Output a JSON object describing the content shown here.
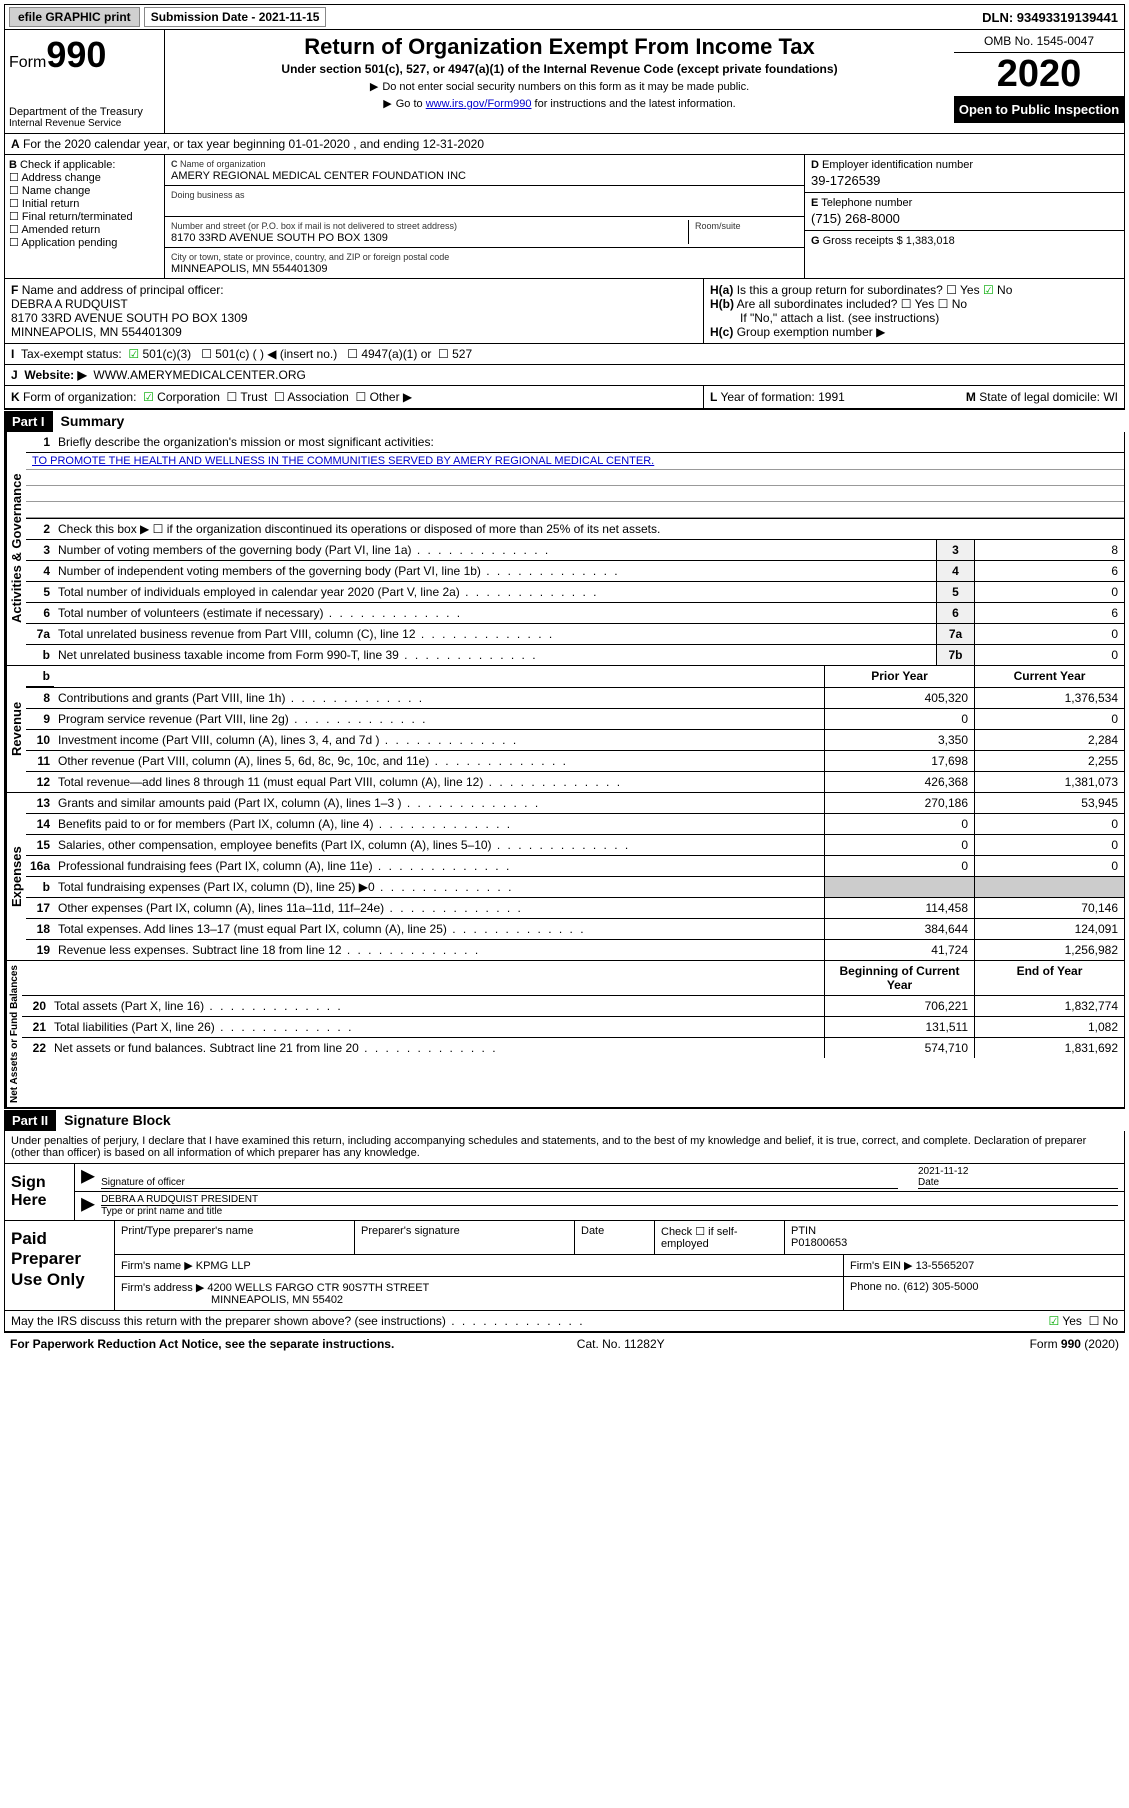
{
  "topbar": {
    "efile": "efile GRAPHIC print",
    "sub_label": "Submission Date - 2021-11-15",
    "dln": "DLN: 93493319139441"
  },
  "hdr": {
    "form_word": "Form",
    "form_no": "990",
    "dept": "Department of the Treasury",
    "irs": "Internal Revenue Service",
    "title": "Return of Organization Exempt From Income Tax",
    "subtitle": "Under section 501(c), 527, or 4947(a)(1) of the Internal Revenue Code (except private foundations)",
    "ssn_note": "Do not enter social security numbers on this form as it may be made public.",
    "goto": "Go to www.irs.gov/Form990 for instructions and the latest information.",
    "link": "www.irs.gov/Form990",
    "omb": "OMB No. 1545-0047",
    "year": "2020",
    "open": "Open to Public Inspection"
  },
  "A": "For the 2020 calendar year, or tax year beginning 01-01-2020    , and ending 12-31-2020",
  "B": {
    "label": "Check if applicable:",
    "items": [
      "Address change",
      "Name change",
      "Initial return",
      "Final return/terminated",
      "Amended return",
      "Application pending"
    ]
  },
  "C": {
    "name_lab": "Name of organization",
    "name": "AMERY REGIONAL MEDICAL CENTER FOUNDATION INC",
    "dba_lab": "Doing business as",
    "dba": "",
    "addr_lab": "Number and street (or P.O. box if mail is not delivered to street address)",
    "room_lab": "Room/suite",
    "addr": "8170 33RD AVENUE SOUTH PO BOX 1309",
    "city_lab": "City or town, state or province, country, and ZIP or foreign postal code",
    "city": "MINNEAPOLIS, MN  554401309"
  },
  "D": {
    "lab": "Employer identification number",
    "val": "39-1726539"
  },
  "E": {
    "lab": "Telephone number",
    "val": "(715) 268-8000"
  },
  "G": {
    "lab": "Gross receipts $",
    "val": "1,383,018"
  },
  "F": {
    "lab": "Name and address of principal officer:",
    "name": "DEBRA A RUDQUIST",
    "addr": "8170 33RD AVENUE SOUTH PO BOX 1309",
    "city": "MINNEAPOLIS, MN  554401309"
  },
  "H": {
    "a": "Is this a group return for subordinates?",
    "b": "Are all subordinates included?",
    "b_note": "If \"No,\" attach a list. (see instructions)",
    "c": "Group exemption number ▶"
  },
  "I": {
    "lab": "Tax-exempt status:",
    "opts": [
      "501(c)(3)",
      "501(c) (  ) ◀ (insert no.)",
      "4947(a)(1) or",
      "527"
    ]
  },
  "J": {
    "lab": "Website: ▶",
    "val": "WWW.AMERYMEDICALCENTER.ORG"
  },
  "K": {
    "lab": "Form of organization:",
    "opts": [
      "Corporation",
      "Trust",
      "Association",
      "Other ▶"
    ]
  },
  "L": {
    "lab": "Year of formation:",
    "val": "1991"
  },
  "M": {
    "lab": "State of legal domicile:",
    "val": "WI"
  },
  "part1": {
    "hdr": "Part I",
    "title": "Summary"
  },
  "gov": {
    "tab": "Activities & Governance",
    "l1_lab": "Briefly describe the organization's mission or most significant activities:",
    "l1_val": "TO PROMOTE THE HEALTH AND WELLNESS IN THE COMMUNITIES SERVED BY AMERY REGIONAL MEDICAL CENTER.",
    "l2": "Check this box ▶ ☐  if the organization discontinued its operations or disposed of more than 25% of its net assets.",
    "rows": [
      {
        "n": "3",
        "t": "Number of voting members of the governing body (Part VI, line 1a)",
        "b": "3",
        "v": "8"
      },
      {
        "n": "4",
        "t": "Number of independent voting members of the governing body (Part VI, line 1b)",
        "b": "4",
        "v": "6"
      },
      {
        "n": "5",
        "t": "Total number of individuals employed in calendar year 2020 (Part V, line 2a)",
        "b": "5",
        "v": "0"
      },
      {
        "n": "6",
        "t": "Total number of volunteers (estimate if necessary)",
        "b": "6",
        "v": "6"
      },
      {
        "n": "7a",
        "t": "Total unrelated business revenue from Part VIII, column (C), line 12",
        "b": "7a",
        "v": "0"
      },
      {
        "n": "b",
        "t": "Net unrelated business taxable income from Form 990-T, line 39",
        "b": "7b",
        "v": "0"
      }
    ]
  },
  "rev": {
    "tab": "Revenue",
    "hdr_prior": "Prior Year",
    "hdr_curr": "Current Year",
    "rows": [
      {
        "n": "8",
        "t": "Contributions and grants (Part VIII, line 1h)",
        "p": "405,320",
        "c": "1,376,534"
      },
      {
        "n": "9",
        "t": "Program service revenue (Part VIII, line 2g)",
        "p": "0",
        "c": "0"
      },
      {
        "n": "10",
        "t": "Investment income (Part VIII, column (A), lines 3, 4, and 7d )",
        "p": "3,350",
        "c": "2,284"
      },
      {
        "n": "11",
        "t": "Other revenue (Part VIII, column (A), lines 5, 6d, 8c, 9c, 10c, and 11e)",
        "p": "17,698",
        "c": "2,255"
      },
      {
        "n": "12",
        "t": "Total revenue—add lines 8 through 11 (must equal Part VIII, column (A), line 12)",
        "p": "426,368",
        "c": "1,381,073"
      }
    ]
  },
  "exp": {
    "tab": "Expenses",
    "rows": [
      {
        "n": "13",
        "t": "Grants and similar amounts paid (Part IX, column (A), lines 1–3 )",
        "p": "270,186",
        "c": "53,945"
      },
      {
        "n": "14",
        "t": "Benefits paid to or for members (Part IX, column (A), line 4)",
        "p": "0",
        "c": "0"
      },
      {
        "n": "15",
        "t": "Salaries, other compensation, employee benefits (Part IX, column (A), lines 5–10)",
        "p": "0",
        "c": "0"
      },
      {
        "n": "16a",
        "t": "Professional fundraising fees (Part IX, column (A), line 11e)",
        "p": "0",
        "c": "0"
      },
      {
        "n": "b",
        "t": "Total fundraising expenses (Part IX, column (D), line 25) ▶0",
        "p": "",
        "c": ""
      },
      {
        "n": "17",
        "t": "Other expenses (Part IX, column (A), lines 11a–11d, 11f–24e)",
        "p": "114,458",
        "c": "70,146"
      },
      {
        "n": "18",
        "t": "Total expenses. Add lines 13–17 (must equal Part IX, column (A), line 25)",
        "p": "384,644",
        "c": "124,091"
      },
      {
        "n": "19",
        "t": "Revenue less expenses. Subtract line 18 from line 12",
        "p": "41,724",
        "c": "1,256,982"
      }
    ]
  },
  "net": {
    "tab": "Net Assets or Fund Balances",
    "hdr_beg": "Beginning of Current Year",
    "hdr_end": "End of Year",
    "rows": [
      {
        "n": "20",
        "t": "Total assets (Part X, line 16)",
        "p": "706,221",
        "c": "1,832,774"
      },
      {
        "n": "21",
        "t": "Total liabilities (Part X, line 26)",
        "p": "131,511",
        "c": "1,082"
      },
      {
        "n": "22",
        "t": "Net assets or fund balances. Subtract line 21 from line 20",
        "p": "574,710",
        "c": "1,831,692"
      }
    ]
  },
  "part2": {
    "hdr": "Part II",
    "title": "Signature Block"
  },
  "sig": {
    "decl": "Under penalties of perjury, I declare that I have examined this return, including accompanying schedules and statements, and to the best of my knowledge and belief, it is true, correct, and complete. Declaration of preparer (other than officer) is based on all information of which preparer has any knowledge.",
    "sign_here": "Sign Here",
    "sig_officer": "Signature of officer",
    "date_lab": "Date",
    "date": "2021-11-12",
    "name": "DEBRA A RUDQUIST  PRESIDENT",
    "name_lab": "Type or print name and title"
  },
  "prep": {
    "label": "Paid Preparer Use Only",
    "r1": {
      "c1": "Print/Type preparer's name",
      "c2": "Preparer's signature",
      "c3": "Date",
      "c4": "Check ☐ if self-employed",
      "c5": "PTIN",
      "ptin": "P01800653"
    },
    "r2": {
      "lab": "Firm's name   ▶",
      "val": "KPMG LLP",
      "ein_lab": "Firm's EIN ▶",
      "ein": "13-5565207"
    },
    "r3": {
      "lab": "Firm's address ▶",
      "val": "4200 WELLS FARGO CTR 90S7TH STREET",
      "ph_lab": "Phone no.",
      "ph": "(612) 305-5000"
    },
    "r3b": "MINNEAPOLIS, MN  55402",
    "q": "May the IRS discuss this return with the preparer shown above? (see instructions)"
  },
  "footer": {
    "l": "For Paperwork Reduction Act Notice, see the separate instructions.",
    "c": "Cat. No. 11282Y",
    "r": "Form 990 (2020)"
  }
}
